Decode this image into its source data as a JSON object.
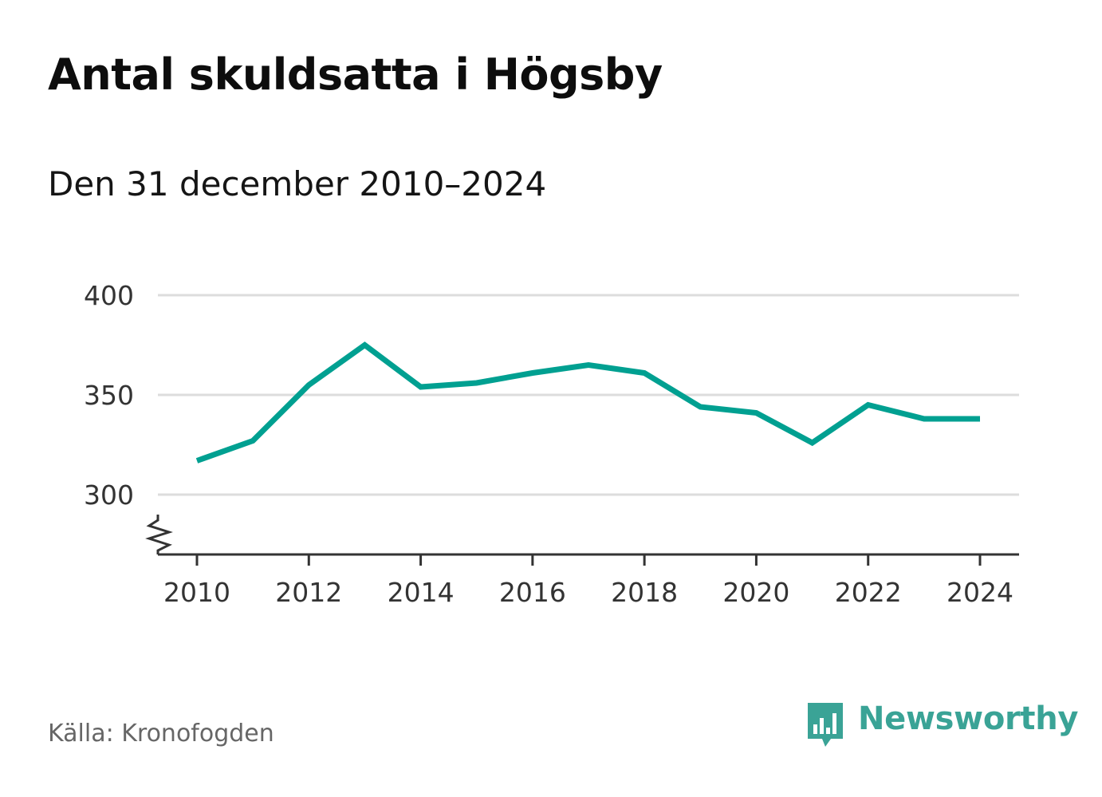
{
  "header": {
    "title": "Antal skuldsatta i Högsby",
    "subtitle": "Den 31 december 2010–2024"
  },
  "footer": {
    "source": "Källa: Kronofogden",
    "brand": "Newsworthy",
    "brand_icon": "newsworthy-logo-icon",
    "brand_color": "#3aa396"
  },
  "chart_data": {
    "type": "line",
    "title": "Antal skuldsatta i Högsby",
    "subtitle": "Den 31 december 2010–2024",
    "xlabel": "",
    "ylabel": "",
    "x": [
      2010,
      2011,
      2012,
      2013,
      2014,
      2015,
      2016,
      2017,
      2018,
      2019,
      2020,
      2021,
      2022,
      2023,
      2024
    ],
    "series": [
      {
        "values": [
          317,
          327,
          355,
          375,
          354,
          356,
          361,
          365,
          361,
          344,
          341,
          326,
          345,
          338,
          338
        ],
        "color": "#00a091"
      }
    ],
    "xticks": [
      "2010",
      "2012",
      "2014",
      "2016",
      "2018",
      "2020",
      "2022",
      "2024"
    ],
    "yticks": [
      "300",
      "350",
      "400"
    ],
    "ylim": [
      270,
      400
    ],
    "xlim": [
      2010,
      2024
    ],
    "y_axis_break": true,
    "grid": true,
    "legend": "none"
  }
}
